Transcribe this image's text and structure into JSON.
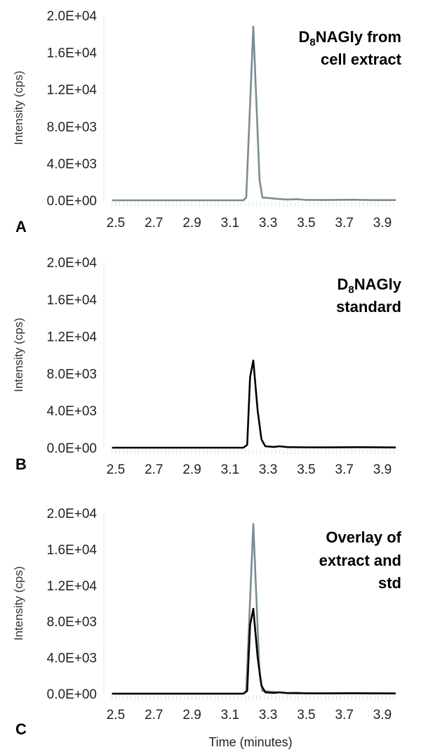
{
  "chart_data": [
    {
      "type": "line",
      "panel_label": "A",
      "title_lines": [
        "D8NAGly from",
        "cell extract"
      ],
      "xlabel": "",
      "ylabel": "Intensity (cps)",
      "xlim": [
        2.48,
        3.97
      ],
      "ylim": [
        0,
        20000
      ],
      "x_ticks": [
        "2.5",
        "2.7",
        "2.9",
        "3.1",
        "3.3",
        "3.5",
        "3.7",
        "3.9"
      ],
      "y_ticks": [
        "0.0E+00",
        "4.0E+03",
        "8.0E+03",
        "1.2E+04",
        "1.6E+04",
        "2.0E+04"
      ],
      "series": [
        {
          "name": "extract",
          "color": "#7a8c93",
          "x": [
            2.48,
            3.17,
            3.185,
            3.222,
            3.255,
            3.27,
            3.3,
            3.35,
            3.4,
            3.45,
            3.5,
            3.6,
            3.75,
            3.85,
            3.97
          ],
          "y": [
            0,
            0,
            300,
            18800,
            2200,
            300,
            250,
            150,
            80,
            120,
            40,
            30,
            60,
            20,
            20
          ]
        }
      ]
    },
    {
      "type": "line",
      "panel_label": "B",
      "title_lines": [
        "D8NAGly",
        "standard"
      ],
      "xlabel": "",
      "ylabel": "Intensity (cps)",
      "xlim": [
        2.48,
        3.97
      ],
      "ylim": [
        0,
        20000
      ],
      "x_ticks": [
        "2.5",
        "2.7",
        "2.9",
        "3.1",
        "3.3",
        "3.5",
        "3.7",
        "3.9"
      ],
      "y_ticks": [
        "0.0E+00",
        "4.0E+03",
        "8.0E+03",
        "1.2E+04",
        "1.6E+04",
        "2.0E+04"
      ],
      "series": [
        {
          "name": "standard",
          "color": "#000000",
          "x": [
            2.48,
            3.17,
            3.19,
            3.205,
            3.222,
            3.245,
            3.265,
            3.285,
            3.33,
            3.36,
            3.4,
            3.5,
            3.6,
            3.8,
            3.97
          ],
          "y": [
            0,
            0,
            300,
            7600,
            9400,
            4000,
            900,
            150,
            80,
            150,
            60,
            40,
            30,
            50,
            20
          ]
        }
      ]
    },
    {
      "type": "line",
      "panel_label": "C",
      "title_lines": [
        "Overlay of",
        "extract and",
        "std"
      ],
      "xlabel": "Time (minutes)",
      "ylabel": "Intensity (cps)",
      "xlim": [
        2.48,
        3.97
      ],
      "ylim": [
        0,
        20000
      ],
      "x_ticks": [
        "2.5",
        "2.7",
        "2.9",
        "3.1",
        "3.3",
        "3.5",
        "3.7",
        "3.9"
      ],
      "y_ticks": [
        "0.0E+00",
        "4.0E+03",
        "8.0E+03",
        "1.2E+04",
        "1.6E+04",
        "2.0E+04"
      ],
      "series": [
        {
          "name": "extract",
          "color": "#7a8c93",
          "x": [
            2.48,
            3.17,
            3.185,
            3.222,
            3.255,
            3.27,
            3.3,
            3.35,
            3.4,
            3.45,
            3.5,
            3.6,
            3.75,
            3.85,
            3.97
          ],
          "y": [
            0,
            0,
            300,
            18800,
            2200,
            300,
            250,
            150,
            80,
            120,
            40,
            30,
            60,
            20,
            20
          ]
        },
        {
          "name": "standard",
          "color": "#000000",
          "x": [
            2.48,
            3.17,
            3.19,
            3.205,
            3.222,
            3.245,
            3.265,
            3.285,
            3.33,
            3.36,
            3.4,
            3.5,
            3.6,
            3.8,
            3.97
          ],
          "y": [
            0,
            0,
            300,
            7600,
            9400,
            4000,
            900,
            150,
            80,
            150,
            60,
            40,
            30,
            50,
            20
          ]
        }
      ]
    }
  ]
}
